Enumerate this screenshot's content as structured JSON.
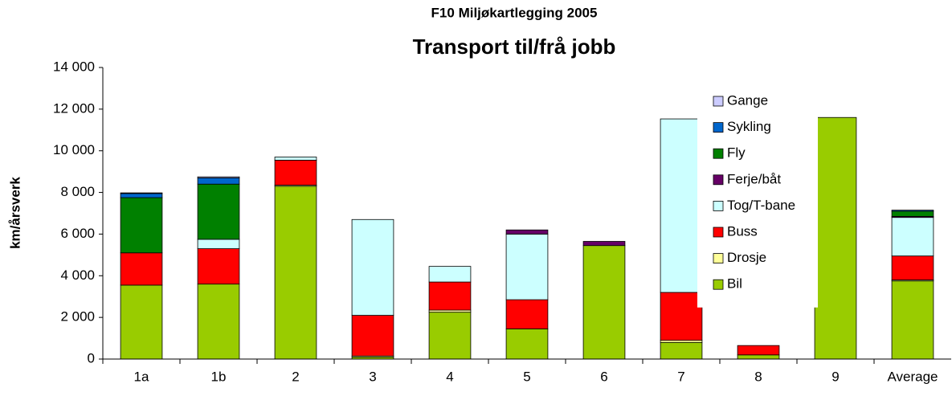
{
  "chart_data": {
    "type": "stacked_bar",
    "title": "F10 Miljøkartlegging 2005",
    "subtitle": "Transport til/frå jobb",
    "y_label": "km/årsverk",
    "categories": [
      "1a",
      "1b",
      "2",
      "3",
      "4",
      "5",
      "6",
      "7",
      "8",
      "9",
      "Average"
    ],
    "series": [
      {
        "name": "Bil",
        "color": "#99cc00",
        "values": [
          3550,
          3600,
          8300,
          100,
          2250,
          1450,
          5450,
          800,
          200,
          11600,
          3750
        ]
      },
      {
        "name": "Drosje",
        "color": "#ffff99",
        "values": [
          0,
          0,
          50,
          50,
          100,
          0,
          0,
          100,
          0,
          0,
          50
        ]
      },
      {
        "name": "Buss",
        "color": "#ff0000",
        "values": [
          1550,
          1700,
          1200,
          1950,
          1350,
          1400,
          0,
          2300,
          450,
          0,
          1150
        ]
      },
      {
        "name": "Tog/T-bane",
        "color": "#ccffff",
        "values": [
          0,
          450,
          150,
          4600,
          750,
          3150,
          0,
          8330,
          0,
          0,
          1850
        ]
      },
      {
        "name": "Ferje/båt",
        "color": "#660066",
        "values": [
          0,
          0,
          0,
          0,
          0,
          200,
          200,
          0,
          0,
          0,
          50
        ]
      },
      {
        "name": "Fly",
        "color": "#008000",
        "values": [
          2650,
          2650,
          0,
          0,
          0,
          0,
          0,
          0,
          0,
          0,
          250
        ]
      },
      {
        "name": "Sykling",
        "color": "#0066cc",
        "values": [
          200,
          300,
          0,
          0,
          0,
          0,
          0,
          0,
          0,
          0,
          50
        ]
      },
      {
        "name": "Gange",
        "color": "#ccccff",
        "values": [
          30,
          50,
          0,
          0,
          0,
          0,
          0,
          0,
          0,
          0,
          0
        ]
      }
    ],
    "ylim": [
      0,
      14000
    ],
    "yticks": [
      0,
      {
        "value": 2000,
        "label": "2 000"
      },
      {
        "value": 4000,
        "label": "4 000"
      },
      {
        "value": 6000,
        "label": "6 000"
      },
      {
        "value": 8000,
        "label": "8 000"
      },
      {
        "value": 10000,
        "label": "10 000"
      },
      {
        "value": 12000,
        "label": "12 000"
      },
      {
        "value": 14000,
        "label": "14 000"
      }
    ],
    "legend": "right"
  }
}
